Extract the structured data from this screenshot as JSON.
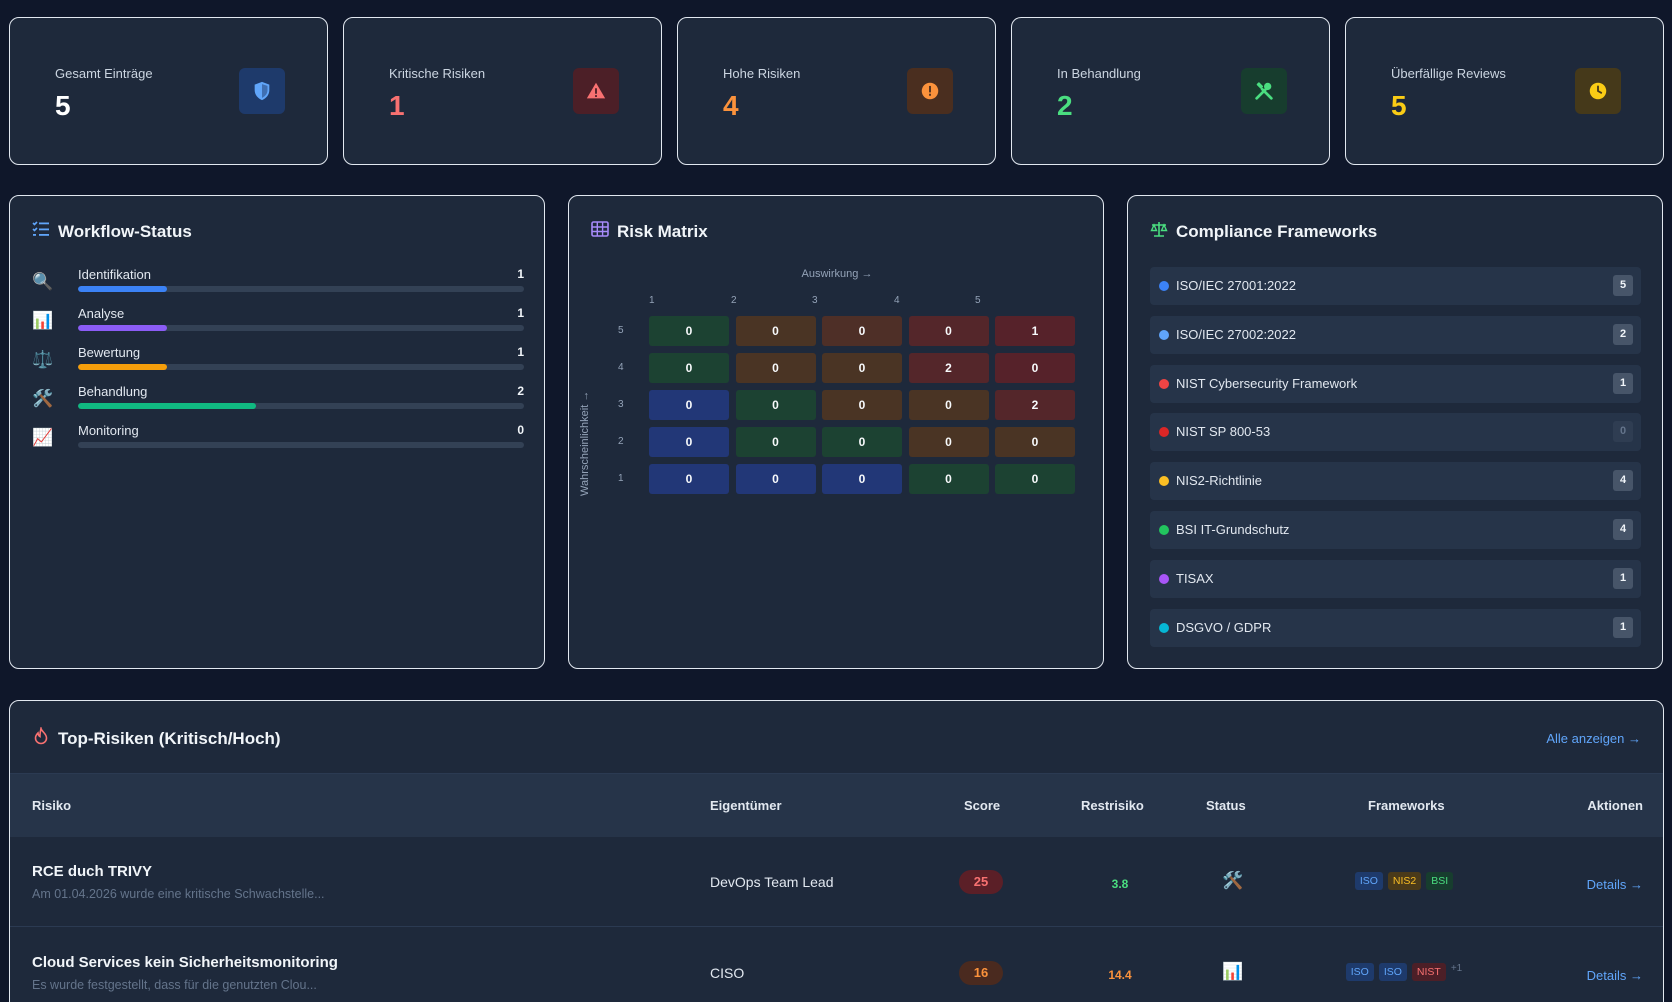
{
  "stats": [
    {
      "label": "Gesamt Einträge",
      "value": "5",
      "color": "#ffffff",
      "icon": "shield-icon",
      "icon_color": "#60a5fa",
      "icon_bg": "#1e3a6b"
    },
    {
      "label": "Kritische Risiken",
      "value": "1",
      "color": "#f87171",
      "icon": "warning-triangle-icon",
      "icon_color": "#f87171",
      "icon_bg": "#4c1f27"
    },
    {
      "label": "Hohe Risiken",
      "value": "4",
      "color": "#fb923c",
      "icon": "exclamation-circle-icon",
      "icon_color": "#fb923c",
      "icon_bg": "#4a2e1f"
    },
    {
      "label": "In Behandlung",
      "value": "2",
      "color": "#4ade80",
      "icon": "tools-icon",
      "icon_color": "#4ade80",
      "icon_bg": "#173d2e"
    },
    {
      "label": "Überfällige Reviews",
      "value": "5",
      "color": "#facc15",
      "icon": "clock-icon",
      "icon_color": "#facc15",
      "icon_bg": "#45391a"
    }
  ],
  "workflow": {
    "title": "Workflow-Status",
    "items": [
      {
        "icon": "🔍",
        "label": "Identifikation",
        "count": "1",
        "fraction": 0.2,
        "color": "#3b82f6"
      },
      {
        "icon": "📊",
        "label": "Analyse",
        "count": "1",
        "fraction": 0.2,
        "color": "#8b5cf6"
      },
      {
        "icon": "⚖️",
        "label": "Bewertung",
        "count": "1",
        "fraction": 0.2,
        "color": "#f59e0b"
      },
      {
        "icon": "🛠️",
        "label": "Behandlung",
        "count": "2",
        "fraction": 0.4,
        "color": "#10b981"
      },
      {
        "icon": "📈",
        "label": "Monitoring",
        "count": "0",
        "fraction": 0,
        "color": "#64748b"
      }
    ]
  },
  "matrix": {
    "title": "Risk Matrix",
    "x_label": "Auswirkung →",
    "y_label": "Wahrscheinlichkeit →",
    "columns": [
      "1",
      "2",
      "3",
      "4",
      "5"
    ],
    "rows": [
      {
        "label": "5",
        "cells": [
          "0",
          "0",
          "0",
          "0",
          "1"
        ]
      },
      {
        "label": "4",
        "cells": [
          "0",
          "0",
          "0",
          "2",
          "0"
        ]
      },
      {
        "label": "3",
        "cells": [
          "0",
          "0",
          "0",
          "0",
          "2"
        ]
      },
      {
        "label": "2",
        "cells": [
          "0",
          "0",
          "0",
          "0",
          "0"
        ]
      },
      {
        "label": "1",
        "cells": [
          "0",
          "0",
          "0",
          "0",
          "0"
        ]
      }
    ],
    "colors": [
      [
        "#1c4232",
        "#4a3424",
        "#4e2f27",
        "#54262a",
        "#56222a"
      ],
      [
        "#1c4232",
        "#4a3424",
        "#4a3424",
        "#54262a",
        "#56222a"
      ],
      [
        "#223777",
        "#1c4232",
        "#4a3424",
        "#4a3424",
        "#54262a"
      ],
      [
        "#223777",
        "#1c4232",
        "#1c4232",
        "#4a3424",
        "#4a3424"
      ],
      [
        "#223777",
        "#223777",
        "#223777",
        "#1c4232",
        "#1c4232"
      ]
    ]
  },
  "frameworks": {
    "title": "Compliance Frameworks",
    "items": [
      {
        "name": "ISO/IEC 27001:2022",
        "count": "5",
        "color": "#3b82f6"
      },
      {
        "name": "ISO/IEC 27002:2022",
        "count": "2",
        "color": "#60a5fa"
      },
      {
        "name": "NIST Cybersecurity Framework",
        "count": "1",
        "color": "#ef4444"
      },
      {
        "name": "NIST SP 800-53",
        "count": "0",
        "color": "#dc2626"
      },
      {
        "name": "NIS2-Richtlinie",
        "count": "4",
        "color": "#fbbf24"
      },
      {
        "name": "BSI IT-Grundschutz",
        "count": "4",
        "color": "#22c55e"
      },
      {
        "name": "TISAX",
        "count": "1",
        "color": "#a855f7"
      },
      {
        "name": "DSGVO / GDPR",
        "count": "1",
        "color": "#06b6d4"
      }
    ]
  },
  "top_risks": {
    "title": "Top-Risiken (Kritisch/Hoch)",
    "all_link": "Alle anzeigen →",
    "headers": {
      "risk": "Risiko",
      "owner": "Eigentümer",
      "score": "Score",
      "residual": "Restrisiko",
      "status": "Status",
      "frameworks": "Frameworks",
      "actions": "Aktionen"
    },
    "rows": [
      {
        "title": "RCE duch TRIVY",
        "desc": "Am 01.04.2026 wurde eine kritische Schwachstelle...",
        "owner": "DevOps Team Lead",
        "score": "25",
        "score_color": "#f87171",
        "score_bg": "#5b1f27",
        "residual": "3.8",
        "residual_color": "#4ade80",
        "status_icon": "🛠️",
        "tags": [
          {
            "text": "ISO",
            "kind": "iso"
          },
          {
            "text": "NIS2",
            "kind": "nis2"
          },
          {
            "text": "BSI",
            "kind": "bsi"
          }
        ],
        "more": "",
        "details": "Details →"
      },
      {
        "title": "Cloud Services kein Sicherheitsmonitoring",
        "desc": "Es wurde festgestellt, dass für die genutzten Clou...",
        "owner": "CISO",
        "score": "16",
        "score_color": "#fb923c",
        "score_bg": "#4a2a1f",
        "residual": "14.4",
        "residual_color": "#fb923c",
        "status_icon": "📊",
        "tags": [
          {
            "text": "ISO",
            "kind": "iso"
          },
          {
            "text": "ISO",
            "kind": "iso"
          },
          {
            "text": "NIST",
            "kind": "nist"
          }
        ],
        "more": "+1",
        "details": "Details →"
      }
    ]
  }
}
